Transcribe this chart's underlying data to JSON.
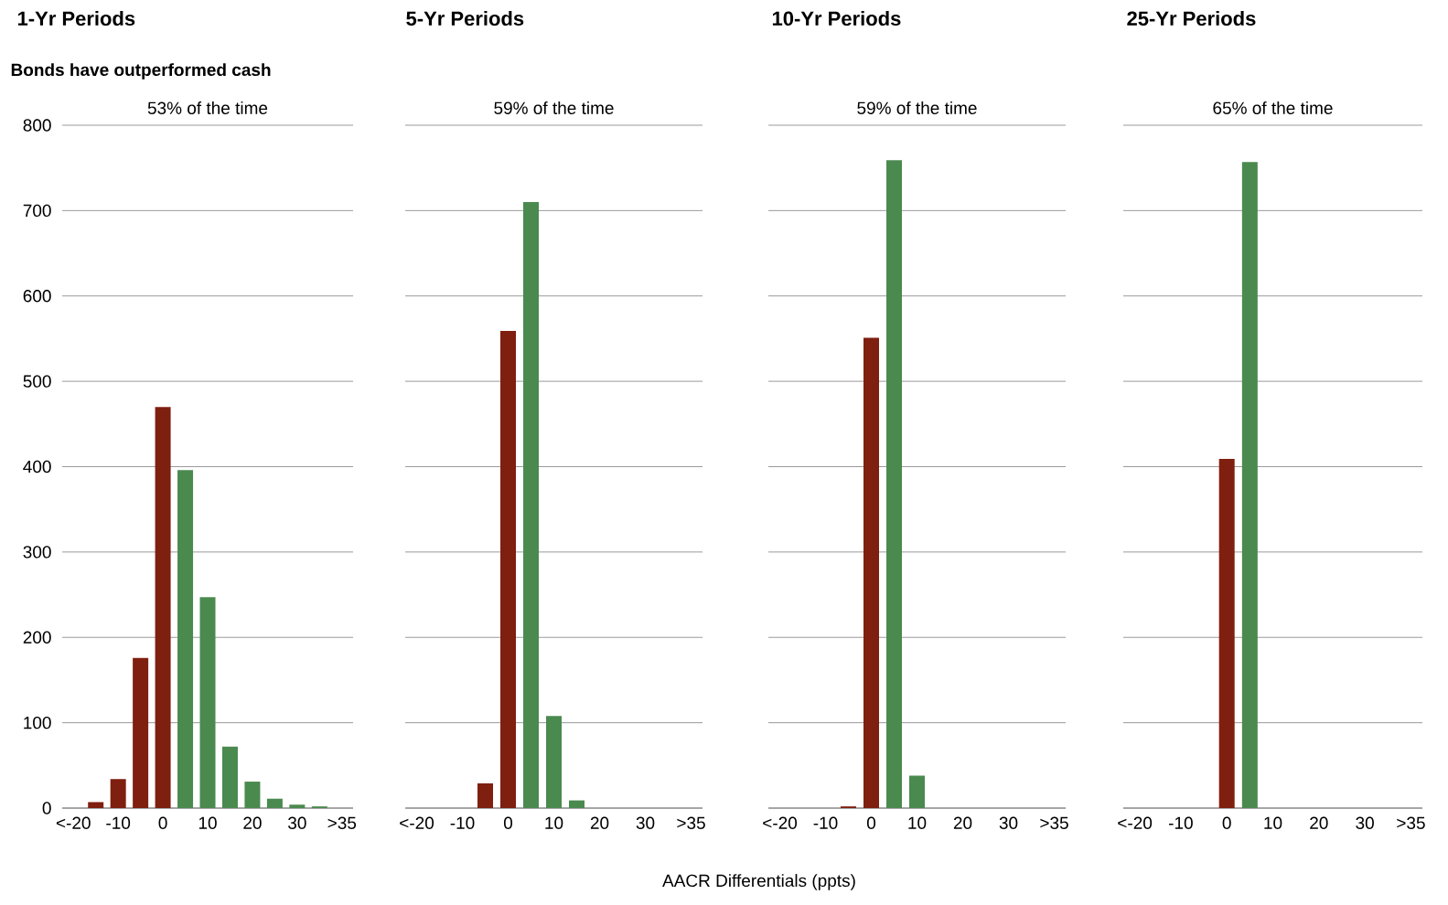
{
  "chart_data": [
    {
      "type": "bar",
      "title": "1-Yr Periods",
      "subtitle": "Bonds have outperformed cash",
      "annotations": [
        "53% of the time"
      ],
      "categories": [
        "<-20",
        null,
        "-10",
        null,
        "0",
        null,
        "10",
        null,
        "20",
        null,
        "30",
        null,
        ">35"
      ],
      "values": [
        0,
        7,
        34,
        176,
        470,
        396,
        247,
        72,
        31,
        11,
        4,
        2,
        0
      ],
      "colors": [
        "#7f1f0f",
        "#7f1f0f",
        "#7f1f0f",
        "#7f1f0f",
        "#7f1f0f",
        "#4a8a4f",
        "#4a8a4f",
        "#4a8a4f",
        "#4a8a4f",
        "#4a8a4f",
        "#4a8a4f",
        "#4a8a4f",
        "#4a8a4f"
      ],
      "ylim": [
        0,
        800
      ],
      "yticks": [
        0,
        100,
        200,
        300,
        400,
        500,
        600,
        700,
        800
      ],
      "grid": "y"
    },
    {
      "type": "bar",
      "title": "5-Yr Periods",
      "annotations": [
        "59% of the time"
      ],
      "categories": [
        "<-20",
        null,
        "-10",
        null,
        "0",
        null,
        "10",
        null,
        "20",
        null,
        "30",
        null,
        ">35"
      ],
      "values": [
        0,
        0,
        0,
        29,
        559,
        710,
        108,
        9,
        0,
        0,
        0,
        0,
        0
      ],
      "colors": [
        "#7f1f0f",
        "#7f1f0f",
        "#7f1f0f",
        "#7f1f0f",
        "#7f1f0f",
        "#4a8a4f",
        "#4a8a4f",
        "#4a8a4f",
        "#4a8a4f",
        "#4a8a4f",
        "#4a8a4f",
        "#4a8a4f",
        "#4a8a4f"
      ],
      "ylim": [
        0,
        800
      ],
      "yticks": [
        0,
        100,
        200,
        300,
        400,
        500,
        600,
        700,
        800
      ],
      "grid": "y",
      "tick_labels": "x"
    },
    {
      "type": "bar",
      "title": "10-Yr Periods",
      "annotations": [
        "59% of the time"
      ],
      "xlabel": "AACR Differentials (ppts)",
      "categories": [
        "<-20",
        null,
        "-10",
        null,
        "0",
        null,
        "10",
        null,
        "20",
        null,
        "30",
        null,
        ">35"
      ],
      "values": [
        0,
        0,
        0,
        2,
        551,
        759,
        38,
        0,
        0,
        0,
        0,
        0,
        0
      ],
      "colors": [
        "#7f1f0f",
        "#7f1f0f",
        "#7f1f0f",
        "#7f1f0f",
        "#7f1f0f",
        "#4a8a4f",
        "#4a8a4f",
        "#4a8a4f",
        "#4a8a4f",
        "#4a8a4f",
        "#4a8a4f",
        "#4a8a4f",
        "#4a8a4f"
      ],
      "ylim": [
        0,
        800
      ],
      "yticks": [
        0,
        100,
        200,
        300,
        400,
        500,
        600,
        700,
        800
      ],
      "grid": "y",
      "tick_labels": "x"
    },
    {
      "type": "bar",
      "title": "25-Yr Periods",
      "annotations": [
        "65% of the time"
      ],
      "categories": [
        "<-20",
        null,
        "-10",
        null,
        "0",
        null,
        "10",
        null,
        "20",
        null,
        "30",
        null,
        ">35"
      ],
      "values": [
        0,
        0,
        0,
        0,
        409,
        757,
        0,
        0,
        0,
        0,
        0,
        0,
        0
      ],
      "colors": [
        "#7f1f0f",
        "#7f1f0f",
        "#7f1f0f",
        "#7f1f0f",
        "#7f1f0f",
        "#4a8a4f",
        "#4a8a4f",
        "#4a8a4f",
        "#4a8a4f",
        "#4a8a4f",
        "#4a8a4f",
        "#4a8a4f",
        "#4a8a4f"
      ],
      "ylim": [
        0,
        800
      ],
      "yticks": [
        0,
        100,
        200,
        300,
        400,
        500,
        600,
        700,
        800
      ],
      "grid": "y",
      "tick_labels": "x"
    }
  ]
}
